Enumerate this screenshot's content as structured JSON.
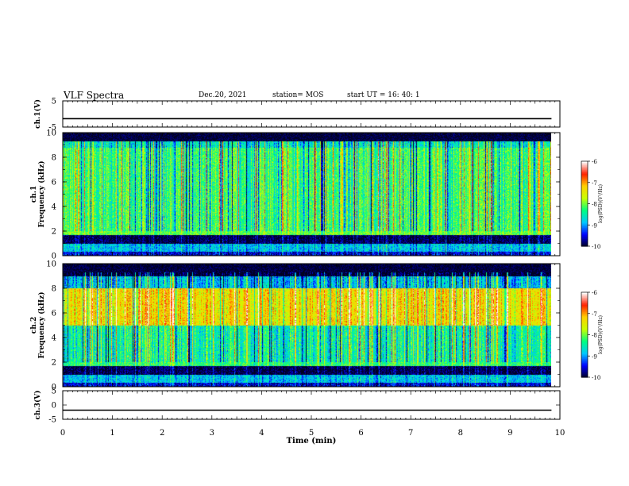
{
  "header": {
    "title": "VLF Spectra",
    "date": "Dec.20, 2021",
    "station": "station= MOS",
    "start_ut": "start  UT  =   16: 40: 1"
  },
  "chart_data": [
    {
      "type": "line",
      "id": "ch1-waveform",
      "ylabel": "ch.1(V)",
      "ylim": [
        -5,
        5
      ],
      "yticks": [
        "5",
        "-5"
      ],
      "xlim": [
        0,
        10
      ],
      "x": [
        0,
        9.83
      ],
      "y": [
        -1.8,
        -1.8
      ]
    },
    {
      "type": "heatmap",
      "id": "ch1-spectrogram",
      "ylabel": "ch.1\nFrequency (kHz)",
      "ylim": [
        0,
        10
      ],
      "yticks": [
        "0",
        "2",
        "4",
        "6",
        "8",
        "10"
      ],
      "xlim": [
        0,
        10
      ],
      "data_extent_min": 9.83,
      "colorbar": {
        "label": "log(PSD)(V²/Hz)",
        "range": [
          -10,
          -6
        ],
        "ticks": [
          "-6",
          "-7",
          "-8",
          "-9",
          "-10"
        ]
      },
      "dominant_level": -8,
      "band_levels": [
        {
          "f": [
            0,
            0.3
          ],
          "level": -9.5
        },
        {
          "f": [
            0.3,
            1.0
          ],
          "level": -8.8
        },
        {
          "f": [
            1.0,
            1.7
          ],
          "level": -9.9
        },
        {
          "f": [
            1.7,
            2.0
          ],
          "level": -8.0
        },
        {
          "f": [
            2.0,
            8.8
          ],
          "level": -8.2
        },
        {
          "f": [
            8.8,
            9.3
          ],
          "level": -8.6
        },
        {
          "f": [
            9.3,
            10
          ],
          "level": -10
        }
      ]
    },
    {
      "type": "heatmap",
      "id": "ch2-spectrogram",
      "ylabel": "ch.2\nFrequency (kHz)",
      "ylim": [
        0,
        10
      ],
      "yticks": [
        "0",
        "2",
        "4",
        "6",
        "8",
        "10"
      ],
      "xlim": [
        0,
        10
      ],
      "data_extent_min": 9.83,
      "colorbar": {
        "label": "log(PSD)(V²/Hz)",
        "range": [
          -10,
          -6
        ],
        "ticks": [
          "-6",
          "-7",
          "-8",
          "-9",
          "-10"
        ]
      },
      "dominant_level": -7.8,
      "band_levels": [
        {
          "f": [
            0,
            0.3
          ],
          "level": -9.5
        },
        {
          "f": [
            0.3,
            1.0
          ],
          "level": -8.8
        },
        {
          "f": [
            1.0,
            1.7
          ],
          "level": -9.9
        },
        {
          "f": [
            1.7,
            2.0
          ],
          "level": -8.2
        },
        {
          "f": [
            2.0,
            5.0
          ],
          "level": -8.4
        },
        {
          "f": [
            5.0,
            8.0
          ],
          "level": -7.3
        },
        {
          "f": [
            8.0,
            9.0
          ],
          "level": -8.8
        },
        {
          "f": [
            9.0,
            10
          ],
          "level": -10
        }
      ]
    },
    {
      "type": "line",
      "id": "ch3-waveform",
      "ylabel": "ch.3(V)",
      "ylim": [
        -5,
        5
      ],
      "yticks": [
        "5",
        "0",
        "-5"
      ],
      "xlim": [
        0,
        10
      ],
      "x": [
        0,
        9.83
      ],
      "y": [
        -1.8,
        -1.8
      ]
    }
  ],
  "xaxis": {
    "label": "Time  (min)",
    "ticks": [
      "0",
      "1",
      "2",
      "3",
      "4",
      "5",
      "6",
      "7",
      "8",
      "9",
      "10"
    ]
  },
  "colors": {
    "colormap": [
      "#000020",
      "#0000ff",
      "#00c8ff",
      "#00ff7f",
      "#c8ff00",
      "#ffd000",
      "#ff2000",
      "#ffffff"
    ]
  }
}
